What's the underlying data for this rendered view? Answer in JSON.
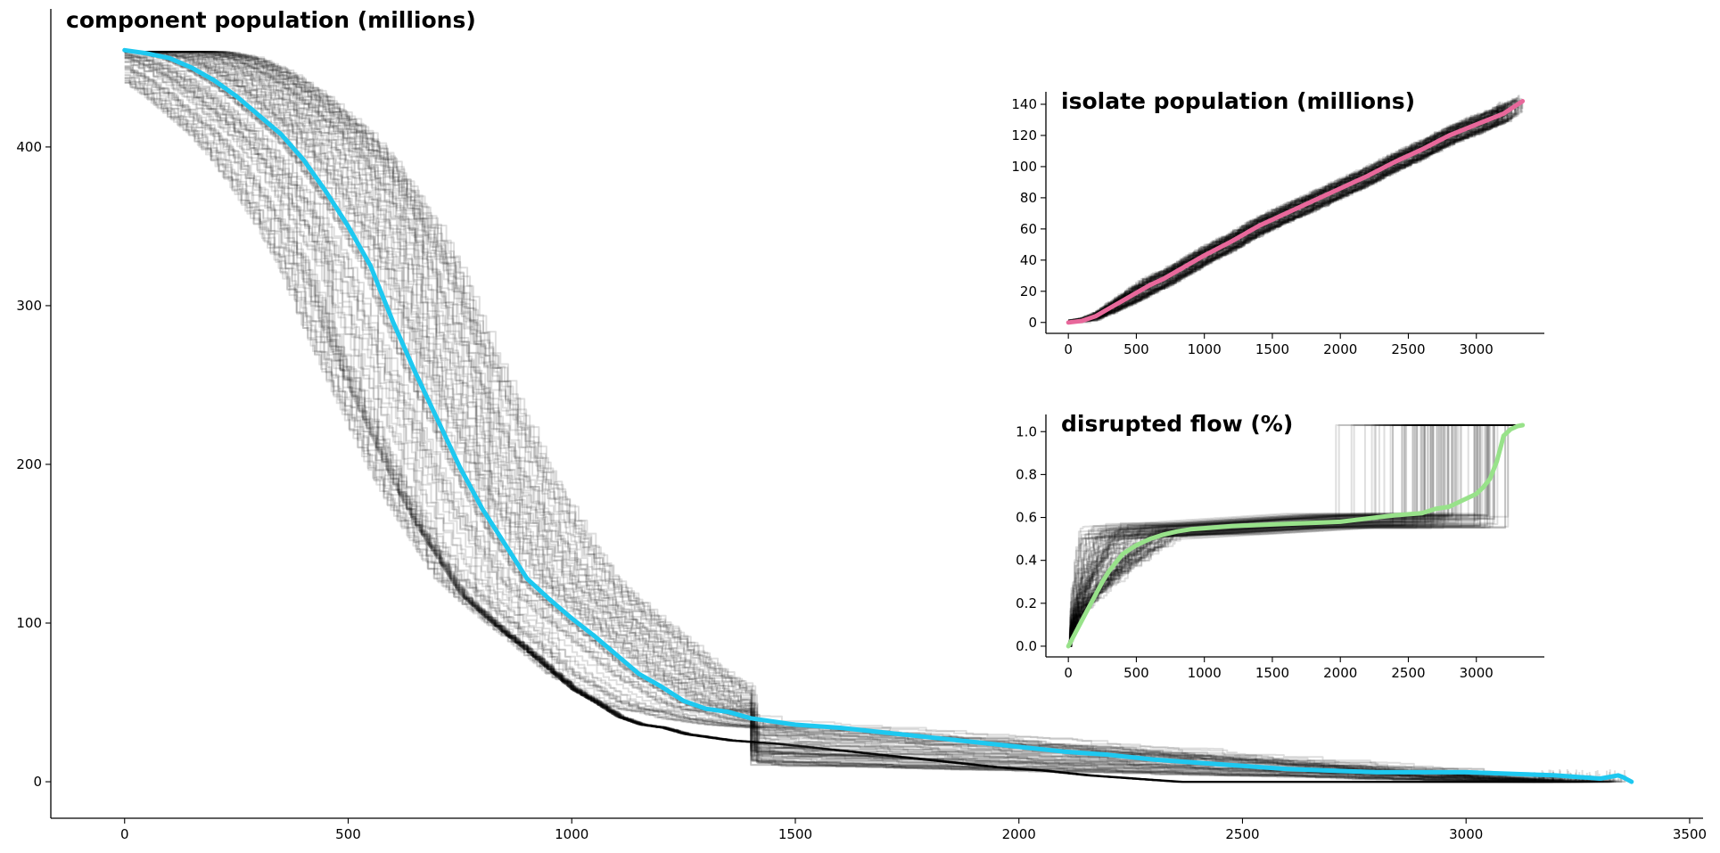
{
  "chart_data": [
    {
      "id": "main",
      "type": "line",
      "title": "component population (millions)",
      "xlabel": "",
      "ylabel": "",
      "xlim": [
        -165,
        3530
      ],
      "ylim": [
        -23,
        487
      ],
      "xticks": [
        0,
        500,
        1000,
        1500,
        2000,
        2500,
        3000,
        3500
      ],
      "yticks": [
        0,
        100,
        200,
        300,
        400
      ],
      "grid": false,
      "legend": "none",
      "colors": {
        "mean": "#1ec8f0",
        "traces": "#000000"
      },
      "mean_series": {
        "x": [
          0,
          50,
          100,
          150,
          200,
          250,
          300,
          350,
          400,
          450,
          500,
          550,
          600,
          650,
          700,
          750,
          800,
          850,
          900,
          950,
          1000,
          1050,
          1100,
          1150,
          1200,
          1250,
          1300,
          1350,
          1400,
          1500,
          1600,
          1700,
          1800,
          1900,
          2000,
          2100,
          2200,
          2300,
          2400,
          2500,
          2600,
          2700,
          2800,
          2900,
          3000,
          3100,
          3200,
          3250,
          3300,
          3340,
          3350,
          3370
        ],
        "y": [
          461,
          459,
          456,
          450,
          442,
          432,
          420,
          408,
          392,
          372,
          350,
          325,
          290,
          258,
          228,
          198,
          172,
          150,
          128,
          115,
          103,
          92,
          80,
          68,
          60,
          51,
          46,
          44,
          40,
          36,
          34,
          31,
          28,
          25,
          22,
          19,
          17,
          14,
          12,
          10,
          8,
          7,
          6,
          6,
          6,
          5,
          4,
          3,
          2,
          4,
          3,
          0
        ]
      },
      "traces": {
        "count": 100,
        "x_end_range": [
          3150,
          3360
        ],
        "y_start": 460,
        "y_end_range": [
          0,
          8
        ]
      }
    },
    {
      "id": "isolate",
      "type": "line",
      "title": "isolate population (millions)",
      "xlabel": "",
      "ylabel": "",
      "xlim": [
        -165,
        3500
      ],
      "ylim": [
        -7,
        148
      ],
      "xticks": [
        0,
        500,
        1000,
        1500,
        2000,
        2500,
        3000
      ],
      "yticks": [
        0,
        20,
        40,
        60,
        80,
        100,
        120,
        140
      ],
      "grid": false,
      "legend": "none",
      "colors": {
        "mean": "#e8689b",
        "traces": "#000000"
      },
      "mean_series": {
        "x": [
          0,
          100,
          200,
          300,
          400,
          500,
          600,
          700,
          800,
          900,
          1000,
          1200,
          1400,
          1600,
          1800,
          2000,
          2200,
          2400,
          2600,
          2800,
          3000,
          3200,
          3340
        ],
        "y": [
          0,
          1,
          4,
          9,
          14,
          19,
          24,
          28,
          33,
          38,
          43,
          52,
          62,
          70,
          78,
          86,
          94,
          103,
          111,
          120,
          127,
          134,
          142
        ]
      },
      "traces": {
        "count": 100,
        "x_end_range": [
          3150,
          3340
        ],
        "y_start": 0,
        "y_end_range": [
          133,
          142
        ]
      }
    },
    {
      "id": "flow",
      "type": "line",
      "title": "disrupted flow (%)",
      "xlabel": "",
      "ylabel": "",
      "xlim": [
        -165,
        3500
      ],
      "ylim": [
        -0.05,
        1.08
      ],
      "xticks": [
        0,
        500,
        1000,
        1500,
        2000,
        2500,
        3000
      ],
      "yticks": [
        0.0,
        0.2,
        0.4,
        0.6,
        0.8,
        1.0
      ],
      "ytick_labels": [
        "0.0",
        "0.2",
        "0.4",
        "0.6",
        "0.8",
        "1.0"
      ],
      "grid": false,
      "legend": "none",
      "colors": {
        "mean": "#98e28a",
        "traces": "#000000"
      },
      "mean_series": {
        "x": [
          0,
          50,
          100,
          150,
          200,
          250,
          300,
          350,
          400,
          450,
          500,
          600,
          700,
          800,
          900,
          1000,
          1200,
          1400,
          1600,
          1800,
          2000,
          2200,
          2400,
          2600,
          2700,
          2800,
          2900,
          3000,
          3050,
          3100,
          3150,
          3180,
          3200,
          3250,
          3300,
          3340
        ],
        "y": [
          0.0,
          0.06,
          0.12,
          0.18,
          0.24,
          0.3,
          0.35,
          0.39,
          0.43,
          0.45,
          0.47,
          0.5,
          0.52,
          0.535,
          0.545,
          0.55,
          0.56,
          0.565,
          0.57,
          0.575,
          0.58,
          0.595,
          0.61,
          0.62,
          0.64,
          0.65,
          0.68,
          0.71,
          0.74,
          0.78,
          0.86,
          0.93,
          0.98,
          1.01,
          1.025,
          1.03
        ]
      },
      "traces": {
        "count": 100,
        "x_end_range": [
          3150,
          3340
        ],
        "y_start": 0,
        "y_levels": [
          0.55,
          0.62,
          1.03
        ]
      }
    }
  ]
}
